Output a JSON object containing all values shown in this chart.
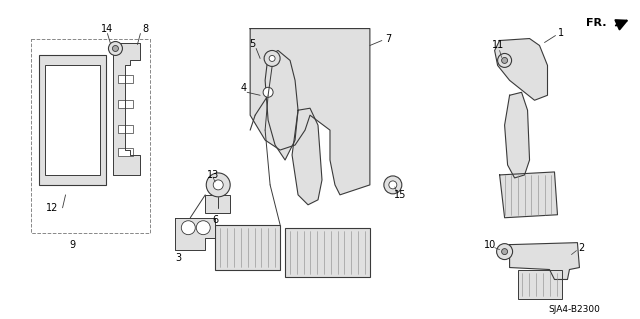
{
  "background_color": "#ffffff",
  "line_color": "#3a3a3a",
  "fill_light": "#e0e0e0",
  "fill_mid": "#cccccc",
  "text_color": "#000000",
  "figsize": [
    6.4,
    3.19
  ],
  "dpi": 100,
  "diagram_ref": "SJA4-B2300"
}
